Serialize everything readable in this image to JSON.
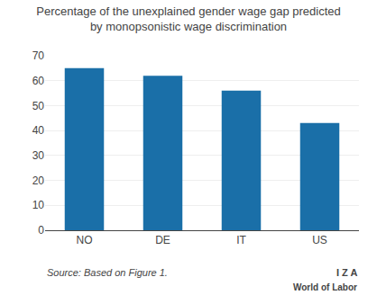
{
  "chart_data": {
    "type": "bar",
    "title": "Percentage of the unexplained gender wage gap predicted\nby monopsonistic wage discrimination",
    "categories": [
      "NO",
      "DE",
      "IT",
      "US"
    ],
    "values": [
      65,
      62,
      56,
      43
    ],
    "color": "#1A6FA8",
    "ylim": [
      0,
      70
    ],
    "yticks": [
      0,
      10,
      20,
      30,
      40,
      50,
      60,
      70
    ],
    "grid": true,
    "annotations": [
      "Source: Based on Figure 1.",
      "I Z A",
      "World of Labor"
    ]
  }
}
